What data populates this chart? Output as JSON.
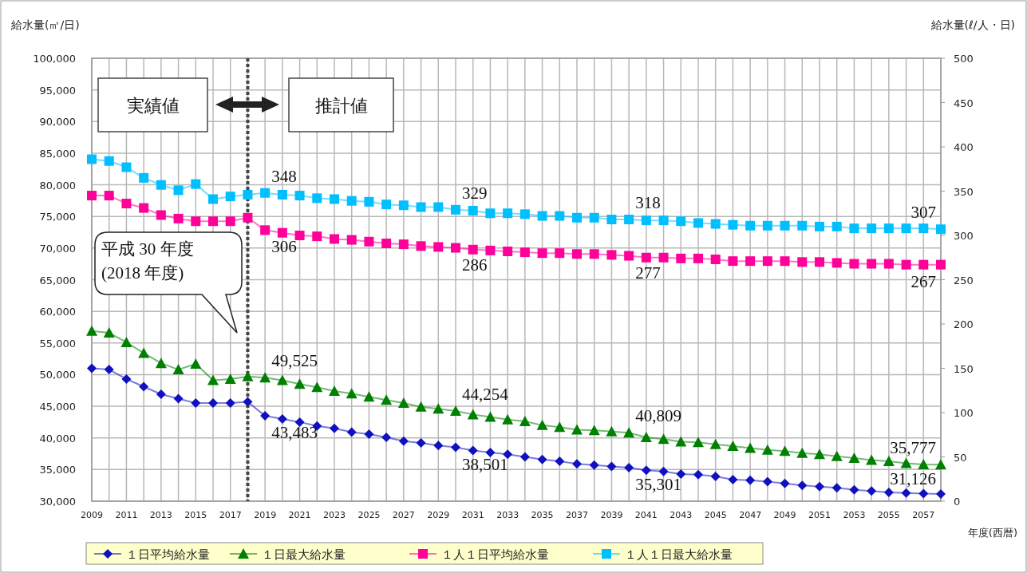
{
  "chart_data": {
    "type": "line",
    "xlabel": "年度(西暦)",
    "ylabel": "給水量(㎥/日)",
    "y2label": "給水量(ℓ/人・日)",
    "x": [
      2009,
      2010,
      2011,
      2012,
      2013,
      2014,
      2015,
      2016,
      2017,
      2018,
      2019,
      2020,
      2021,
      2022,
      2023,
      2024,
      2025,
      2026,
      2027,
      2028,
      2029,
      2030,
      2031,
      2032,
      2033,
      2034,
      2035,
      2036,
      2037,
      2038,
      2039,
      2040,
      2041,
      2042,
      2043,
      2044,
      2045,
      2046,
      2047,
      2048,
      2049,
      2050,
      2051,
      2052,
      2053,
      2054,
      2055,
      2056,
      2057,
      2058
    ],
    "xlim": [
      2009,
      2058
    ],
    "xticks": [
      2009,
      {
        "value": 2010,
        "label": null
      },
      2011,
      {
        "value": 2012,
        "label": null
      },
      2013,
      {
        "value": 2014,
        "label": null
      },
      2015,
      {
        "value": 2016,
        "label": null
      },
      2017,
      {
        "value": 2018,
        "label": null
      },
      2019,
      {
        "value": 2020,
        "label": null
      },
      2021,
      {
        "value": 2022,
        "label": null
      },
      2023,
      {
        "value": 2024,
        "label": null
      },
      2025,
      {
        "value": 2026,
        "label": null
      },
      2027,
      {
        "value": 2028,
        "label": null
      },
      2029,
      {
        "value": 2030,
        "label": null
      },
      2031,
      {
        "value": 2032,
        "label": null
      },
      2033,
      {
        "value": 2034,
        "label": null
      },
      2035,
      {
        "value": 2036,
        "label": null
      },
      2037,
      {
        "value": 2038,
        "label": null
      },
      2039,
      {
        "value": 2040,
        "label": null
      },
      2041,
      {
        "value": 2042,
        "label": null
      },
      2043,
      {
        "value": 2044,
        "label": null
      },
      2045,
      {
        "value": 2046,
        "label": null
      },
      2047,
      {
        "value": 2048,
        "label": null
      },
      2049,
      {
        "value": 2050,
        "label": null
      },
      2051,
      {
        "value": 2052,
        "label": null
      },
      2053,
      {
        "value": 2054,
        "label": null
      },
      2055,
      {
        "value": 2056,
        "label": null
      },
      2057,
      {
        "value": 2058,
        "label": null
      }
    ],
    "ylim": [
      30000,
      100000
    ],
    "yticks": [
      {
        "value": 30000,
        "label": "30,000"
      },
      {
        "value": 35000,
        "label": "35,000"
      },
      {
        "value": 40000,
        "label": "40,000"
      },
      {
        "value": 45000,
        "label": "45,000"
      },
      {
        "value": 50000,
        "label": "50,000"
      },
      {
        "value": 55000,
        "label": "55,000"
      },
      {
        "value": 60000,
        "label": "60,000"
      },
      {
        "value": 65000,
        "label": "65,000"
      },
      {
        "value": 70000,
        "label": "70,000"
      },
      {
        "value": 75000,
        "label": "75,000"
      },
      {
        "value": 80000,
        "label": "80,000"
      },
      {
        "value": 85000,
        "label": "85,000"
      },
      {
        "value": 90000,
        "label": "90,000"
      },
      {
        "value": 95000,
        "label": "95,000"
      },
      {
        "value": 100000,
        "label": "100,000"
      }
    ],
    "y2lim": [
      0,
      500
    ],
    "y2ticks": [
      0,
      50,
      100,
      150,
      200,
      250,
      300,
      350,
      400,
      450,
      500
    ],
    "grid": true,
    "legend": "bottom",
    "series": [
      {
        "name": "１日平均給水量",
        "color": "#1010c0",
        "marker": "diamond",
        "values": [
          51000,
          50800,
          49300,
          48100,
          46900,
          46200,
          45500,
          45500,
          45500,
          45700,
          43483,
          43000,
          42500,
          41900,
          41500,
          40900,
          40600,
          40100,
          39500,
          39200,
          38800,
          38501,
          38000,
          37700,
          37400,
          37000,
          36600,
          36300,
          35900,
          35700,
          35500,
          35301,
          34900,
          34700,
          34300,
          34200,
          33900,
          33400,
          33300,
          33100,
          32800,
          32500,
          32300,
          32100,
          31800,
          31600,
          31400,
          31300,
          31200,
          31126
        ],
        "value_labels": [
          null,
          null,
          null,
          null,
          null,
          null,
          null,
          null,
          null,
          null,
          "43,483",
          null,
          null,
          null,
          null,
          null,
          null,
          null,
          null,
          null,
          null,
          "38,501",
          null,
          null,
          null,
          null,
          null,
          null,
          null,
          null,
          null,
          "35,301",
          null,
          null,
          null,
          null,
          null,
          null,
          null,
          null,
          null,
          null,
          null,
          null,
          null,
          null,
          null,
          null,
          null,
          "31,126"
        ]
      },
      {
        "name": "１日最大給水量",
        "color": "#008000",
        "marker": "triangle",
        "values": [
          56900,
          56600,
          55100,
          53400,
          51800,
          50800,
          51700,
          49100,
          49300,
          49700,
          49525,
          49100,
          48500,
          48000,
          47400,
          47000,
          46500,
          46000,
          45500,
          44900,
          44600,
          44254,
          43700,
          43300,
          42900,
          42600,
          42000,
          41700,
          41300,
          41200,
          41000,
          40809,
          40100,
          39800,
          39400,
          39300,
          39000,
          38700,
          38400,
          38100,
          37900,
          37600,
          37400,
          37100,
          36800,
          36500,
          36300,
          36000,
          35800,
          35777
        ],
        "value_labels": [
          null,
          null,
          null,
          null,
          null,
          null,
          null,
          null,
          null,
          null,
          "49,525",
          null,
          null,
          null,
          null,
          null,
          null,
          null,
          null,
          null,
          null,
          "44,254",
          null,
          null,
          null,
          null,
          null,
          null,
          null,
          null,
          null,
          "40,809",
          null,
          null,
          null,
          null,
          null,
          null,
          null,
          null,
          null,
          null,
          null,
          null,
          null,
          null,
          null,
          null,
          null,
          "35,777"
        ]
      },
      {
        "name": "１人１日平均給水量",
        "color": "#ff0099",
        "marker": "square",
        "axis": "y2",
        "values": [
          345,
          345,
          336,
          331,
          323,
          319,
          316,
          316,
          316,
          320,
          306,
          303,
          300,
          299,
          296,
          295,
          293,
          291,
          290,
          288,
          287,
          286,
          284,
          283,
          282,
          281,
          280,
          280,
          279,
          279,
          278,
          277,
          275,
          275,
          274,
          274,
          273,
          271,
          271,
          271,
          271,
          270,
          270,
          269,
          268,
          268,
          268,
          267,
          267,
          267
        ],
        "value_labels": [
          null,
          null,
          null,
          null,
          null,
          null,
          null,
          null,
          null,
          null,
          "306",
          null,
          null,
          null,
          null,
          null,
          null,
          null,
          null,
          null,
          null,
          "286",
          null,
          null,
          null,
          null,
          null,
          null,
          null,
          null,
          null,
          "277",
          null,
          null,
          null,
          null,
          null,
          null,
          null,
          null,
          null,
          null,
          null,
          null,
          null,
          null,
          null,
          null,
          null,
          "267"
        ]
      },
      {
        "name": "１人１日最大給水量",
        "color": "#00bfff",
        "marker": "square",
        "axis": "y2",
        "values": [
          386,
          384,
          377,
          365,
          357,
          351,
          358,
          341,
          344,
          346,
          348,
          346,
          345,
          342,
          341,
          339,
          338,
          335,
          334,
          332,
          332,
          329,
          328,
          325,
          325,
          324,
          322,
          322,
          320,
          320,
          318,
          318,
          317,
          317,
          316,
          314,
          313,
          312,
          311,
          311,
          311,
          311,
          310,
          310,
          308,
          308,
          308,
          308,
          308,
          307
        ],
        "value_labels": [
          null,
          null,
          null,
          null,
          null,
          null,
          null,
          null,
          null,
          null,
          "348",
          null,
          null,
          null,
          null,
          null,
          null,
          null,
          null,
          null,
          null,
          "329",
          null,
          null,
          null,
          null,
          null,
          null,
          null,
          null,
          null,
          "318",
          null,
          null,
          null,
          null,
          null,
          null,
          null,
          null,
          null,
          null,
          null,
          null,
          null,
          null,
          null,
          null,
          null,
          "307"
        ]
      }
    ],
    "ref_lines": [
      {
        "axis": "x",
        "value": 2018,
        "color": "#444444",
        "line_style": "dotted"
      }
    ],
    "annotations": [
      "実績値",
      "推計値",
      "平成 30 年度\n(2018 年度)"
    ]
  }
}
